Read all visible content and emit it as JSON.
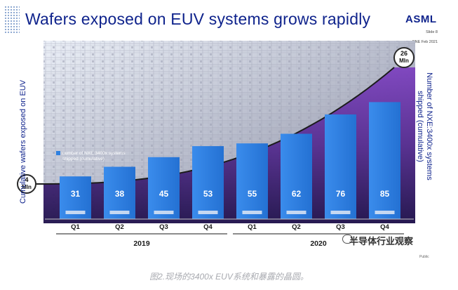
{
  "slide": {
    "title": "Wafers exposed on EUV systems grows rapidly",
    "logo": "ASML",
    "slide_number": "Slide 8",
    "date": "ONE Feb 2021",
    "public_label": "Public",
    "watermark": "半导体行业观察",
    "caption": "图2.现场的3400x EUV系统和暴露的晶圆。"
  },
  "chart_data": {
    "type": "bar",
    "title": "Wafers exposed on EUV systems grows rapidly",
    "categories": [
      "Q1",
      "Q2",
      "Q3",
      "Q4",
      "Q1",
      "Q2",
      "Q3",
      "Q4"
    ],
    "years": [
      {
        "label": "2019",
        "quarters": [
          "Q1",
          "Q2",
          "Q3",
          "Q4"
        ]
      },
      {
        "label": "2020",
        "quarters": [
          "Q1",
          "Q2",
          "Q3",
          "Q4"
        ]
      }
    ],
    "series": [
      {
        "name": "number of NXE:3400x systems shipped (cumulative)",
        "values": [
          31,
          38,
          45,
          53,
          55,
          62,
          76,
          85
        ],
        "color": "#2f80e0"
      }
    ],
    "wafer_curve": {
      "start_label": "4 Mln",
      "end_label": "26 Mln",
      "color": "#1c1c1c"
    },
    "ylabel_left": "Cumulative wafers exposed on EUV",
    "ylabel_right": "Number of NXE:3400x systems shipped (cumulative)",
    "ylim": [
      0,
      100
    ],
    "legend_position": "left-middle",
    "grid": false,
    "colors": {
      "title": "#0f238c",
      "fill_purple": "#6b32a8",
      "fill_dark": "#1e0f4a",
      "bar": "#2f80e0"
    }
  }
}
